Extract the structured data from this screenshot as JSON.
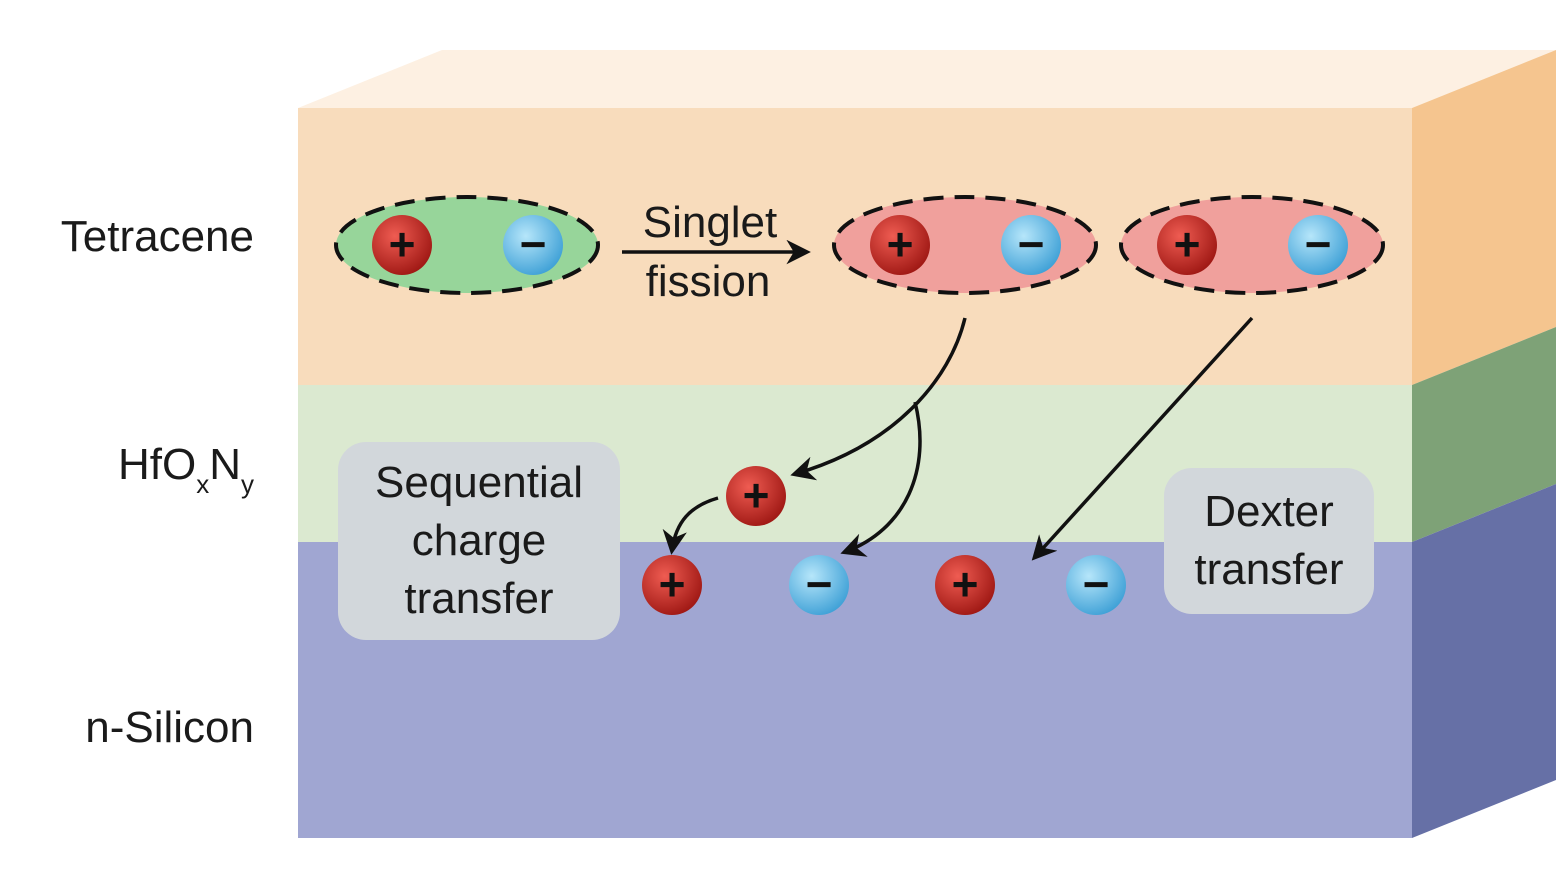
{
  "layers": {
    "tetracene": "Tetracene",
    "hfo": {
      "base1": "HfO",
      "sub1": "x",
      "base2": "N",
      "sub2": "y"
    },
    "silicon": "n-Silicon"
  },
  "process": {
    "singlet_line1": "Singlet",
    "singlet_line2": "fission"
  },
  "boxes": {
    "sequential": [
      "Sequential",
      "charge",
      "transfer"
    ],
    "dexter": [
      "Dexter",
      "transfer"
    ]
  },
  "charges": {
    "positive_symbol": "+",
    "negative_symbol": "−"
  },
  "colors": {
    "tetracene_front": "#f8dcbc",
    "tetracene_top": "#fdf0e2",
    "tetracene_side": "#f5c58f",
    "hfo_front": "#dbe9d0",
    "hfo_side": "#7ea277",
    "silicon_front": "#a0a6d2",
    "silicon_side": "#6670a6",
    "singlet_exciton": "#97d59a",
    "triplet_exciton": "#f0a09c",
    "positive_charge": "#c7302b",
    "negative_charge": "#72c2ea",
    "label_box": "#d2d7db"
  }
}
